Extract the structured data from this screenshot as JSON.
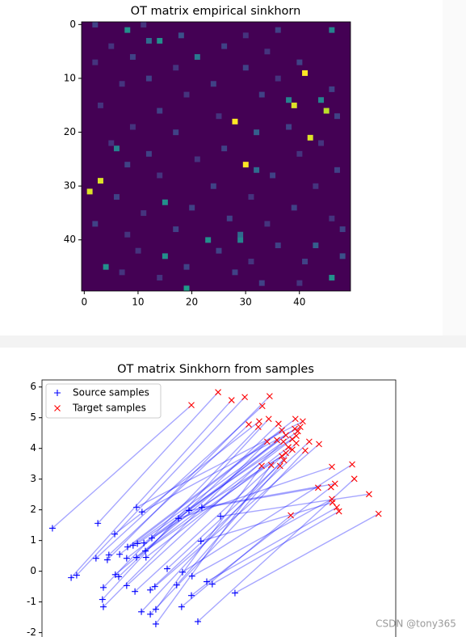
{
  "chart_data": [
    {
      "type": "heatmap",
      "title": "OT matrix empirical sinkhorn",
      "xlim": [
        -0.5,
        49.5
      ],
      "ylim": [
        49.5,
        -0.5
      ],
      "xticks": [
        0,
        10,
        20,
        30,
        40
      ],
      "yticks": [
        0,
        10,
        20,
        30,
        40
      ],
      "facecolor": "#440154",
      "cells": [
        [
          9,
          41,
          1
        ],
        [
          15,
          39,
          0.95
        ],
        [
          16,
          45,
          0.9
        ],
        [
          18,
          28,
          1
        ],
        [
          21,
          42,
          0.95
        ],
        [
          26,
          30,
          1
        ],
        [
          29,
          3,
          0.95
        ],
        [
          31,
          1,
          0.95
        ],
        [
          1,
          8,
          0.5
        ],
        [
          3,
          14,
          0.5
        ],
        [
          3,
          12,
          0.35
        ],
        [
          14,
          38,
          0.45
        ],
        [
          23,
          6,
          0.45
        ],
        [
          33,
          15,
          0.5
        ],
        [
          40,
          23,
          0.5
        ],
        [
          40,
          29,
          0.45
        ],
        [
          43,
          15,
          0.5
        ],
        [
          45,
          4,
          0.5
        ],
        [
          49,
          19,
          0.55
        ],
        [
          47,
          46,
          0.5
        ],
        [
          1,
          46,
          0.45
        ],
        [
          6,
          21,
          0.4
        ],
        [
          14,
          44,
          0.45
        ],
        [
          20,
          32,
          0.3
        ],
        [
          39,
          29,
          0.35
        ],
        [
          41,
          43,
          0.3
        ],
        [
          27,
          32,
          0.35
        ],
        [
          0,
          2,
          0.2
        ],
        [
          0,
          11,
          0.15
        ],
        [
          1,
          36,
          0.2
        ],
        [
          2,
          18,
          0.25
        ],
        [
          2,
          30,
          0.15
        ],
        [
          4,
          5,
          0.15
        ],
        [
          4,
          26,
          0.2
        ],
        [
          5,
          34,
          0.15
        ],
        [
          6,
          9,
          0.2
        ],
        [
          7,
          2,
          0.15
        ],
        [
          7,
          40,
          0.2
        ],
        [
          8,
          17,
          0.15
        ],
        [
          8,
          30,
          0.2
        ],
        [
          10,
          12,
          0.2
        ],
        [
          10,
          36,
          0.15
        ],
        [
          11,
          7,
          0.15
        ],
        [
          11,
          24,
          0.2
        ],
        [
          12,
          46,
          0.2
        ],
        [
          13,
          19,
          0.15
        ],
        [
          13,
          33,
          0.2
        ],
        [
          15,
          3,
          0.15
        ],
        [
          16,
          14,
          0.2
        ],
        [
          17,
          25,
          0.15
        ],
        [
          17,
          47,
          0.2
        ],
        [
          19,
          9,
          0.15
        ],
        [
          19,
          38,
          0.2
        ],
        [
          20,
          17,
          0.2
        ],
        [
          22,
          5,
          0.15
        ],
        [
          22,
          44,
          0.15
        ],
        [
          23,
          26,
          0.2
        ],
        [
          24,
          12,
          0.2
        ],
        [
          24,
          40,
          0.15
        ],
        [
          25,
          21,
          0.15
        ],
        [
          26,
          8,
          0.2
        ],
        [
          28,
          35,
          0.2
        ],
        [
          28,
          14,
          0.15
        ],
        [
          30,
          24,
          0.2
        ],
        [
          30,
          43,
          0.15
        ],
        [
          32,
          6,
          0.2
        ],
        [
          32,
          31,
          0.15
        ],
        [
          34,
          20,
          0.2
        ],
        [
          34,
          39,
          0.2
        ],
        [
          35,
          11,
          0.15
        ],
        [
          36,
          27,
          0.2
        ],
        [
          36,
          46,
          0.15
        ],
        [
          37,
          2,
          0.2
        ],
        [
          37,
          34,
          0.15
        ],
        [
          38,
          17,
          0.2
        ],
        [
          39,
          8,
          0.15
        ],
        [
          41,
          36,
          0.2
        ],
        [
          42,
          10,
          0.15
        ],
        [
          42,
          25,
          0.2
        ],
        [
          44,
          41,
          0.2
        ],
        [
          44,
          31,
          0.15
        ],
        [
          45,
          19,
          0.2
        ],
        [
          46,
          7,
          0.15
        ],
        [
          46,
          28,
          0.2
        ],
        [
          47,
          14,
          0.15
        ],
        [
          48,
          33,
          0.2
        ],
        [
          48,
          40,
          0.15
        ],
        [
          43,
          48,
          0.25
        ],
        [
          38,
          48,
          0.2
        ],
        [
          27,
          47,
          0.2
        ]
      ]
    },
    {
      "type": "scatter",
      "title": "OT matrix Sinkhorn from samples",
      "xlim": [
        -1,
        10.53
      ],
      "ylim": [
        -2.3,
        6.23
      ],
      "yticks": [
        -2,
        -1,
        0,
        1,
        2,
        3,
        4,
        5,
        6
      ],
      "legend": "upper left",
      "link_color": "#0000ff",
      "series": [
        {
          "name": "Source samples",
          "color": "#0000ff",
          "marker": "+",
          "x": [
            -0.66,
            0.82,
            -0.05,
            0.13,
            0.76,
            1.13,
            1.18,
            1.37,
            1.0,
            0.97,
            1.0,
            1.39,
            1.5,
            1.53,
            1.76,
            1.76,
            1.79,
            1.97,
            2.11,
            2.08,
            2.08,
            2.26,
            2.32,
            2.37,
            2.39,
            2.58,
            2.24,
            2.03,
            2.53,
            2.53,
            2.68,
            2.71,
            2.71,
            3.08,
            3.39,
            3.45,
            3.55,
            3.58,
            3.79,
            3.87,
            3.89,
            4.21,
            4.18,
            4.37,
            4.55,
            4.08,
            4.82,
            5.29
          ],
          "y": [
            1.4,
            1.56,
            -0.21,
            -0.13,
            0.42,
            0.37,
            0.53,
            1.21,
            -0.53,
            -0.92,
            -1.16,
            -0.11,
            -0.18,
            0.55,
            0.42,
            -0.47,
            0.79,
            0.84,
            0.9,
            0.45,
            2.08,
            1.93,
            0.92,
            0.66,
            0.45,
            1.08,
            -1.32,
            -0.66,
            -1.4,
            -0.61,
            -0.5,
            -1.24,
            -1.72,
            0.08,
            -0.45,
            1.72,
            -1.16,
            -0.03,
            1.98,
            -0.79,
            -0.16,
            2.08,
            0.98,
            -0.34,
            -0.42,
            -1.64,
            1.79,
            -0.71
          ]
        },
        {
          "name": "Target samples",
          "color": "#ff0000",
          "marker": "x",
          "x": [
            3.87,
            4.74,
            5.18,
            5.61,
            6.18,
            6.42,
            5.74,
            6.08,
            6.05,
            6.39,
            6.34,
            6.66,
            6.71,
            6.82,
            6.95,
            6.87,
            7.26,
            7.24,
            7.29,
            7.16,
            7.5,
            7.42,
            7.34,
            6.95,
            7.03,
            6.82,
            7.16,
            7.29,
            7.58,
            7.71,
            8.03,
            6.16,
            6.47,
            6.89,
            6.76,
            8.45,
            7.11,
            9.11,
            8.0,
            8.42,
            8.45,
            8.55,
            8.47,
            8.61,
            8.68,
            9.18,
            9.66,
            9.97
          ],
          "y": [
            5.41,
            5.83,
            5.57,
            5.67,
            5.38,
            5.7,
            4.78,
            4.88,
            4.7,
            4.96,
            4.22,
            4.27,
            4.8,
            4.59,
            4.43,
            4.22,
            4.96,
            4.64,
            4.41,
            4.3,
            4.88,
            4.7,
            4.56,
            3.85,
            4.04,
            3.75,
            3.96,
            4.17,
            3.93,
            4.22,
            4.14,
            3.43,
            3.46,
            3.61,
            3.43,
            3.4,
            1.82,
            3.48,
            2.72,
            2.74,
            2.35,
            2.85,
            2.24,
            2.08,
            1.95,
            3.01,
            2.51,
            1.87
          ]
        }
      ]
    }
  ],
  "watermark": "CSDN @tony365"
}
